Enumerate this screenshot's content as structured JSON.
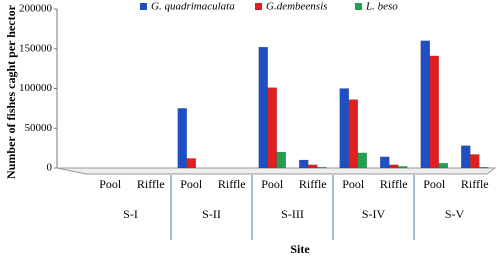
{
  "chart_data": {
    "type": "bar",
    "y_label": "Number of fishes caght per hector",
    "x_label": "Site",
    "categories": [
      "Pool",
      "Riffle",
      "Pool",
      "Riffle",
      "Pool",
      "Riffle",
      "Pool",
      "Riffle",
      "Pool",
      "Riffle"
    ],
    "groups": [
      "S-I",
      "S-II",
      "S-III",
      "S-IV",
      "S-V"
    ],
    "series": [
      {
        "name": "G. quadrimaculata",
        "color": "#1f4fc4",
        "values": [
          0,
          0,
          75000,
          0,
          152000,
          10000,
          100000,
          14000,
          160000,
          28000
        ]
      },
      {
        "name": "G.dembeensis",
        "color": "#e02020",
        "values": [
          0,
          0,
          12000,
          0,
          101000,
          4000,
          86000,
          4000,
          141000,
          17000
        ]
      },
      {
        "name": "L. beso",
        "color": "#22a050",
        "values": [
          0,
          0,
          0,
          0,
          20000,
          1000,
          19000,
          2000,
          6000,
          1000
        ]
      }
    ],
    "ylim": [
      0,
      200000
    ],
    "yticks": [
      0,
      50000,
      100000,
      150000,
      200000
    ],
    "grid": false
  }
}
